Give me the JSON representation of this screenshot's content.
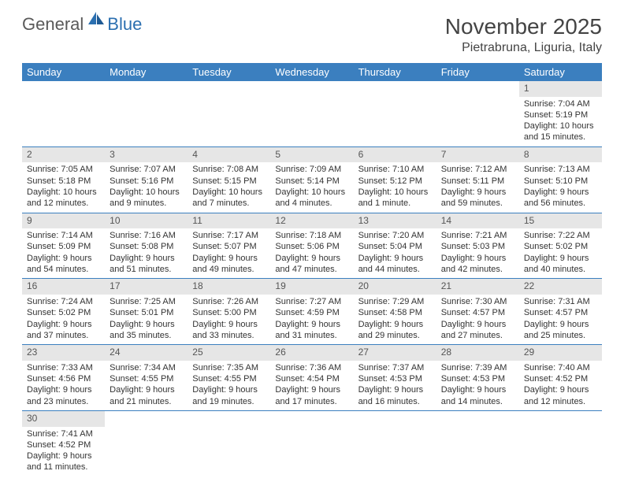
{
  "logo": {
    "part1": "General",
    "part2": "Blue"
  },
  "title": "November 2025",
  "location": "Pietrabruna, Liguria, Italy",
  "colors": {
    "header_bg": "#3b7fbf",
    "header_text": "#ffffff",
    "daynum_bg": "#e6e6e6",
    "row_border": "#3b7fbf",
    "logo_gray": "#5a5a5a",
    "logo_blue": "#2b6fb0",
    "text": "#333333",
    "background": "#ffffff"
  },
  "typography": {
    "title_fontsize": 28,
    "location_fontsize": 16,
    "weekday_fontsize": 13,
    "daynum_fontsize": 12,
    "cell_fontsize": 11
  },
  "weekdays": [
    "Sunday",
    "Monday",
    "Tuesday",
    "Wednesday",
    "Thursday",
    "Friday",
    "Saturday"
  ],
  "weeks": [
    [
      null,
      null,
      null,
      null,
      null,
      null,
      {
        "n": "1",
        "sr": "Sunrise: 7:04 AM",
        "ss": "Sunset: 5:19 PM",
        "dl": "Daylight: 10 hours and 15 minutes."
      }
    ],
    [
      {
        "n": "2",
        "sr": "Sunrise: 7:05 AM",
        "ss": "Sunset: 5:18 PM",
        "dl": "Daylight: 10 hours and 12 minutes."
      },
      {
        "n": "3",
        "sr": "Sunrise: 7:07 AM",
        "ss": "Sunset: 5:16 PM",
        "dl": "Daylight: 10 hours and 9 minutes."
      },
      {
        "n": "4",
        "sr": "Sunrise: 7:08 AM",
        "ss": "Sunset: 5:15 PM",
        "dl": "Daylight: 10 hours and 7 minutes."
      },
      {
        "n": "5",
        "sr": "Sunrise: 7:09 AM",
        "ss": "Sunset: 5:14 PM",
        "dl": "Daylight: 10 hours and 4 minutes."
      },
      {
        "n": "6",
        "sr": "Sunrise: 7:10 AM",
        "ss": "Sunset: 5:12 PM",
        "dl": "Daylight: 10 hours and 1 minute."
      },
      {
        "n": "7",
        "sr": "Sunrise: 7:12 AM",
        "ss": "Sunset: 5:11 PM",
        "dl": "Daylight: 9 hours and 59 minutes."
      },
      {
        "n": "8",
        "sr": "Sunrise: 7:13 AM",
        "ss": "Sunset: 5:10 PM",
        "dl": "Daylight: 9 hours and 56 minutes."
      }
    ],
    [
      {
        "n": "9",
        "sr": "Sunrise: 7:14 AM",
        "ss": "Sunset: 5:09 PM",
        "dl": "Daylight: 9 hours and 54 minutes."
      },
      {
        "n": "10",
        "sr": "Sunrise: 7:16 AM",
        "ss": "Sunset: 5:08 PM",
        "dl": "Daylight: 9 hours and 51 minutes."
      },
      {
        "n": "11",
        "sr": "Sunrise: 7:17 AM",
        "ss": "Sunset: 5:07 PM",
        "dl": "Daylight: 9 hours and 49 minutes."
      },
      {
        "n": "12",
        "sr": "Sunrise: 7:18 AM",
        "ss": "Sunset: 5:06 PM",
        "dl": "Daylight: 9 hours and 47 minutes."
      },
      {
        "n": "13",
        "sr": "Sunrise: 7:20 AM",
        "ss": "Sunset: 5:04 PM",
        "dl": "Daylight: 9 hours and 44 minutes."
      },
      {
        "n": "14",
        "sr": "Sunrise: 7:21 AM",
        "ss": "Sunset: 5:03 PM",
        "dl": "Daylight: 9 hours and 42 minutes."
      },
      {
        "n": "15",
        "sr": "Sunrise: 7:22 AM",
        "ss": "Sunset: 5:02 PM",
        "dl": "Daylight: 9 hours and 40 minutes."
      }
    ],
    [
      {
        "n": "16",
        "sr": "Sunrise: 7:24 AM",
        "ss": "Sunset: 5:02 PM",
        "dl": "Daylight: 9 hours and 37 minutes."
      },
      {
        "n": "17",
        "sr": "Sunrise: 7:25 AM",
        "ss": "Sunset: 5:01 PM",
        "dl": "Daylight: 9 hours and 35 minutes."
      },
      {
        "n": "18",
        "sr": "Sunrise: 7:26 AM",
        "ss": "Sunset: 5:00 PM",
        "dl": "Daylight: 9 hours and 33 minutes."
      },
      {
        "n": "19",
        "sr": "Sunrise: 7:27 AM",
        "ss": "Sunset: 4:59 PM",
        "dl": "Daylight: 9 hours and 31 minutes."
      },
      {
        "n": "20",
        "sr": "Sunrise: 7:29 AM",
        "ss": "Sunset: 4:58 PM",
        "dl": "Daylight: 9 hours and 29 minutes."
      },
      {
        "n": "21",
        "sr": "Sunrise: 7:30 AM",
        "ss": "Sunset: 4:57 PM",
        "dl": "Daylight: 9 hours and 27 minutes."
      },
      {
        "n": "22",
        "sr": "Sunrise: 7:31 AM",
        "ss": "Sunset: 4:57 PM",
        "dl": "Daylight: 9 hours and 25 minutes."
      }
    ],
    [
      {
        "n": "23",
        "sr": "Sunrise: 7:33 AM",
        "ss": "Sunset: 4:56 PM",
        "dl": "Daylight: 9 hours and 23 minutes."
      },
      {
        "n": "24",
        "sr": "Sunrise: 7:34 AM",
        "ss": "Sunset: 4:55 PM",
        "dl": "Daylight: 9 hours and 21 minutes."
      },
      {
        "n": "25",
        "sr": "Sunrise: 7:35 AM",
        "ss": "Sunset: 4:55 PM",
        "dl": "Daylight: 9 hours and 19 minutes."
      },
      {
        "n": "26",
        "sr": "Sunrise: 7:36 AM",
        "ss": "Sunset: 4:54 PM",
        "dl": "Daylight: 9 hours and 17 minutes."
      },
      {
        "n": "27",
        "sr": "Sunrise: 7:37 AM",
        "ss": "Sunset: 4:53 PM",
        "dl": "Daylight: 9 hours and 16 minutes."
      },
      {
        "n": "28",
        "sr": "Sunrise: 7:39 AM",
        "ss": "Sunset: 4:53 PM",
        "dl": "Daylight: 9 hours and 14 minutes."
      },
      {
        "n": "29",
        "sr": "Sunrise: 7:40 AM",
        "ss": "Sunset: 4:52 PM",
        "dl": "Daylight: 9 hours and 12 minutes."
      }
    ],
    [
      {
        "n": "30",
        "sr": "Sunrise: 7:41 AM",
        "ss": "Sunset: 4:52 PM",
        "dl": "Daylight: 9 hours and 11 minutes."
      },
      null,
      null,
      null,
      null,
      null,
      null
    ]
  ]
}
